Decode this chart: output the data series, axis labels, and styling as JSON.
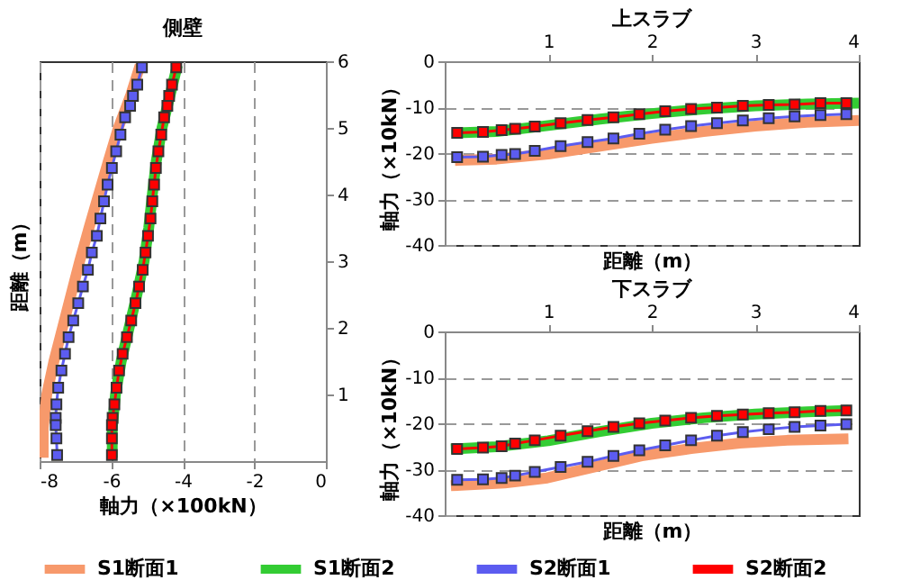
{
  "chart_data": [
    {
      "type": "line",
      "orientation": "horizontal",
      "title": "側壁",
      "xlabel": "軸力（×100kN）",
      "ylabel": "距離（m）",
      "xlim": [
        -8,
        0
      ],
      "xticks": [
        -8,
        -6,
        -4,
        -2,
        0
      ],
      "ylim": [
        0,
        6
      ],
      "yticks": [
        1,
        2,
        3,
        4,
        5,
        6
      ],
      "grid": "x",
      "legend": "bottom",
      "series": [
        {
          "name": "S1断面1",
          "color": "#f7996b",
          "marker": "none",
          "values": [
            -5.19,
            -5.45,
            -5.8,
            -6.08,
            -6.35,
            -6.62,
            -6.88,
            -7.12,
            -7.36,
            -7.6,
            -7.8,
            -7.9,
            -7.9
          ],
          "x": [
            5.94,
            5.5,
            5,
            4.5,
            4,
            3.5,
            3,
            2.5,
            2,
            1.5,
            1,
            0.5,
            0.05
          ]
        },
        {
          "name": "S1断面2",
          "color": "#33cc33",
          "marker": "none",
          "values": [
            -4.15,
            -4.35,
            -4.58,
            -4.74,
            -4.85,
            -4.95,
            -5.08,
            -5.28,
            -5.5,
            -5.72,
            -5.88,
            -5.97,
            -5.97
          ],
          "x": [
            5.94,
            5.5,
            5,
            4.5,
            4,
            3.5,
            3,
            2.5,
            2,
            1.5,
            1,
            0.5,
            0.05
          ]
        },
        {
          "name": "S2断面1",
          "color": "#5c5cf0",
          "marker": "square",
          "values": [
            -5.14,
            -5.27,
            -5.39,
            -5.47,
            -5.61,
            -5.74,
            -5.86,
            -5.98,
            -6.1,
            -6.2,
            -6.3,
            -6.4,
            -6.54,
            -6.65,
            -6.79,
            -6.92,
            -7.06,
            -7.19,
            -7.29,
            -7.39,
            -7.48,
            -7.53,
            -7.55,
            -7.55,
            -7.53,
            -7.51
          ],
          "x": [
            5.91,
            5.65,
            5.48,
            5.33,
            5.16,
            4.9,
            4.65,
            4.4,
            4.15,
            3.9,
            3.64,
            3.38,
            3.13,
            2.87,
            2.62,
            2.37,
            2.11,
            1.86,
            1.61,
            1.36,
            1.1,
            0.85,
            0.65,
            0.54,
            0.34,
            0.09
          ]
        },
        {
          "name": "S2断面2",
          "color": "#ff0000",
          "marker": "square",
          "values": [
            -4.18,
            -4.3,
            -4.38,
            -4.43,
            -4.52,
            -4.6,
            -4.68,
            -4.75,
            -4.8,
            -4.85,
            -4.9,
            -4.97,
            -5.04,
            -5.12,
            -5.22,
            -5.32,
            -5.44,
            -5.56,
            -5.68,
            -5.78,
            -5.85,
            -5.91,
            -5.96,
            -5.98,
            -5.98,
            -5.98
          ],
          "x": [
            5.91,
            5.65,
            5.48,
            5.33,
            5.16,
            4.9,
            4.65,
            4.4,
            4.15,
            3.9,
            3.64,
            3.38,
            3.13,
            2.87,
            2.62,
            2.37,
            2.11,
            1.86,
            1.61,
            1.36,
            1.1,
            0.85,
            0.65,
            0.54,
            0.34,
            0.09
          ]
        }
      ]
    },
    {
      "type": "line",
      "title": "上スラブ",
      "xlabel": "距離（m）",
      "ylabel": "軸力（×10kN）",
      "xlim": [
        0,
        4
      ],
      "xticks": [
        1,
        2,
        3,
        4
      ],
      "ylim": [
        -40,
        0
      ],
      "yticks": [
        -40,
        -30,
        -20,
        -10,
        0
      ],
      "grid": "y",
      "series": [
        {
          "color": "#f7996b",
          "marker": "none",
          "x": [
            0.1,
            0.5,
            1,
            1.5,
            2,
            2.5,
            3,
            3.5,
            4
          ],
          "values": [
            -21.6,
            -21.3,
            -20.2,
            -18.5,
            -16.8,
            -15.3,
            -14.1,
            -13.3,
            -12.9
          ]
        },
        {
          "color": "#33cc33",
          "marker": "none",
          "x": [
            0.1,
            0.5,
            1,
            1.5,
            2,
            2.5,
            3,
            3.5,
            4
          ],
          "values": [
            -15.6,
            -15.3,
            -14.0,
            -12.6,
            -11.4,
            -10.4,
            -9.7,
            -9.3,
            -9.1
          ]
        },
        {
          "color": "#5c5cf0",
          "marker": "square",
          "x": [
            0.12,
            0.37,
            0.55,
            0.68,
            0.87,
            1.12,
            1.38,
            1.63,
            1.88,
            2.13,
            2.38,
            2.63,
            2.88,
            3.13,
            3.38,
            3.63,
            3.88
          ],
          "values": [
            -20.9,
            -20.8,
            -20.4,
            -20.2,
            -19.5,
            -18.5,
            -17.6,
            -16.8,
            -15.8,
            -14.9,
            -14.1,
            -13.5,
            -12.9,
            -12.4,
            -12.0,
            -11.7,
            -11.5
          ]
        },
        {
          "color": "#ff0000",
          "marker": "square",
          "x": [
            0.12,
            0.37,
            0.55,
            0.68,
            0.87,
            1.12,
            1.38,
            1.63,
            1.88,
            2.13,
            2.38,
            2.63,
            2.88,
            3.13,
            3.38,
            3.63,
            3.88
          ],
          "values": [
            -15.6,
            -15.4,
            -15.0,
            -14.7,
            -14.2,
            -13.5,
            -12.8,
            -12.2,
            -11.5,
            -10.9,
            -10.4,
            -10.1,
            -9.7,
            -9.5,
            -9.4,
            -9.1,
            -9.1
          ]
        }
      ]
    },
    {
      "type": "line",
      "title": "下スラブ",
      "xlabel": "距離（m）",
      "ylabel": "軸力（×10kN）",
      "xlim": [
        0,
        4
      ],
      "xticks": [
        1,
        2,
        3,
        4
      ],
      "ylim": [
        -40,
        0
      ],
      "yticks": [
        -40,
        -30,
        -20,
        -10,
        0
      ],
      "grid": "y",
      "series": [
        {
          "color": "#f7996b",
          "marker": "none",
          "x": [
            0.06,
            0.58,
            0.99,
            1.45,
            1.92,
            2.38,
            2.85,
            3.31,
            3.9
          ],
          "values": [
            -33.6,
            -33.0,
            -31.9,
            -29.5,
            -27.0,
            -25.5,
            -24.3,
            -23.7,
            -23.4
          ]
        },
        {
          "color": "#33cc33",
          "marker": "none",
          "x": [
            0.06,
            0.5,
            1,
            1.5,
            2,
            2.5,
            3,
            3.5,
            3.9
          ],
          "values": [
            -25.6,
            -25.1,
            -23.8,
            -21.8,
            -20.0,
            -18.8,
            -18.0,
            -17.5,
            -17.2
          ]
        },
        {
          "color": "#5c5cf0",
          "marker": "square",
          "x": [
            0.12,
            0.37,
            0.55,
            0.68,
            0.87,
            1.12,
            1.38,
            1.63,
            1.88,
            2.13,
            2.38,
            2.63,
            2.88,
            3.13,
            3.38,
            3.63,
            3.88
          ],
          "values": [
            -32.3,
            -32.2,
            -31.9,
            -31.4,
            -30.6,
            -29.5,
            -28.4,
            -27.1,
            -25.9,
            -24.8,
            -23.7,
            -22.7,
            -21.9,
            -21.3,
            -20.8,
            -20.5,
            -20.2
          ]
        },
        {
          "color": "#ff0000",
          "marker": "square",
          "x": [
            0.12,
            0.37,
            0.55,
            0.68,
            0.87,
            1.12,
            1.38,
            1.63,
            1.88,
            2.13,
            2.38,
            2.63,
            2.88,
            3.13,
            3.38,
            3.63,
            3.88
          ],
          "values": [
            -25.6,
            -25.3,
            -25.0,
            -24.4,
            -23.7,
            -22.7,
            -21.7,
            -20.8,
            -20.0,
            -19.4,
            -18.8,
            -18.4,
            -18.1,
            -17.8,
            -17.6,
            -17.3,
            -17.2
          ]
        }
      ]
    }
  ]
}
